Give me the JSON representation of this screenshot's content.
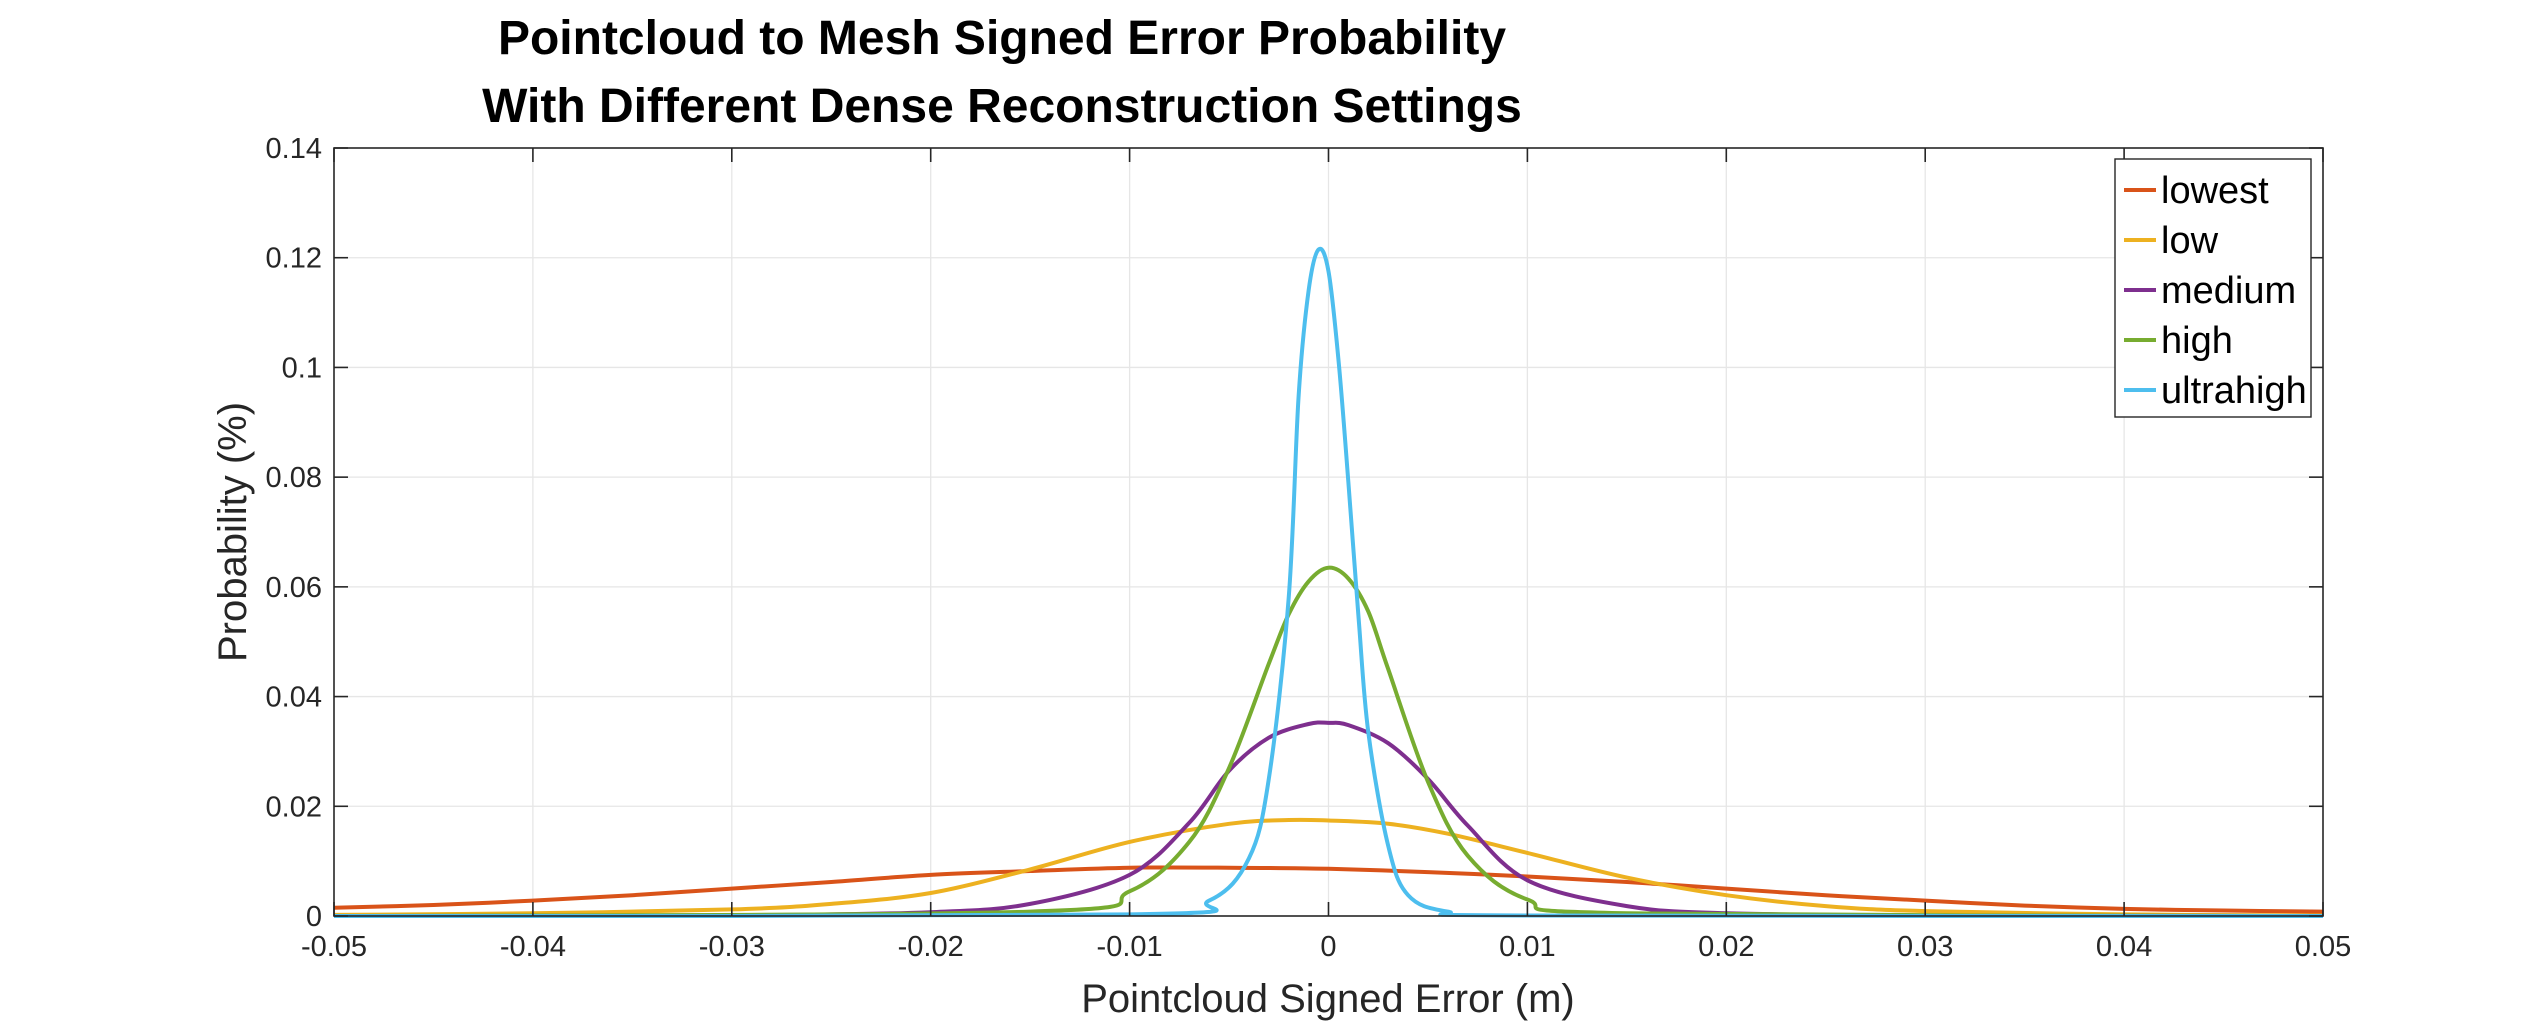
{
  "chart_data": {
    "type": "line",
    "title": [
      "Pointcloud to Mesh Signed Error Probability",
      "With Different Dense Reconstruction Settings"
    ],
    "xlabel": "Pointcloud Signed Error (m)",
    "ylabel": "Probability (%)",
    "xlim": [
      -0.05,
      0.05
    ],
    "ylim": [
      0,
      0.14
    ],
    "xticks": [
      -0.05,
      -0.04,
      -0.03,
      -0.02,
      -0.01,
      0,
      0.01,
      0.02,
      0.03,
      0.04,
      0.05
    ],
    "xtick_labels": [
      "-0.05",
      "-0.04",
      "-0.03",
      "-0.02",
      "-0.01",
      "0",
      "0.01",
      "0.02",
      "0.03",
      "0.04",
      "0.05"
    ],
    "yticks": [
      0,
      0.02,
      0.04,
      0.06,
      0.08,
      0.1,
      0.12,
      0.14
    ],
    "ytick_labels": [
      "0",
      "0.02",
      "0.04",
      "0.06",
      "0.08",
      "0.1",
      "0.12",
      "0.14"
    ],
    "grid": true,
    "legend_position": "top-right",
    "series": [
      {
        "name": "lowest",
        "color": "#D95319",
        "x": [
          -0.05,
          -0.045,
          -0.04,
          -0.035,
          -0.03,
          -0.025,
          -0.02,
          -0.015,
          -0.01,
          -0.005,
          0,
          0.005,
          0.01,
          0.015,
          0.02,
          0.025,
          0.03,
          0.035,
          0.04,
          0.045,
          0.05
        ],
        "y": [
          0.0015,
          0.002,
          0.0028,
          0.0038,
          0.005,
          0.0062,
          0.0075,
          0.0082,
          0.0088,
          0.0088,
          0.0086,
          0.008,
          0.0072,
          0.0062,
          0.005,
          0.0038,
          0.0028,
          0.0019,
          0.0013,
          0.001,
          0.0008
        ]
      },
      {
        "name": "low",
        "color": "#EDB120",
        "x": [
          -0.05,
          -0.04,
          -0.03,
          -0.025,
          -0.02,
          -0.015,
          -0.01,
          -0.005,
          -0.002,
          0,
          0.003,
          0.006,
          0.01,
          0.015,
          0.02,
          0.025,
          0.03,
          0.04,
          0.05
        ],
        "y": [
          0.0002,
          0.0005,
          0.0012,
          0.0022,
          0.0042,
          0.0085,
          0.0135,
          0.0168,
          0.0175,
          0.0174,
          0.0168,
          0.015,
          0.0115,
          0.007,
          0.0038,
          0.0018,
          0.0009,
          0.0003,
          0.0001
        ]
      },
      {
        "name": "medium",
        "color": "#7E2F8E",
        "x": [
          -0.05,
          -0.03,
          -0.02,
          -0.015,
          -0.01,
          -0.007,
          -0.005,
          -0.003,
          -0.001,
          0,
          0.001,
          0.003,
          0.005,
          0.007,
          0.01,
          0.015,
          0.02,
          0.03,
          0.05
        ],
        "y": [
          0,
          0.0001,
          0.0007,
          0.0022,
          0.0075,
          0.017,
          0.0265,
          0.0325,
          0.035,
          0.0352,
          0.0348,
          0.0315,
          0.025,
          0.0165,
          0.0065,
          0.0018,
          0.0005,
          0.0001,
          0
        ]
      },
      {
        "name": "high",
        "color": "#77AC30",
        "x": [
          -0.05,
          -0.015,
          -0.01,
          -0.007,
          -0.005,
          -0.003,
          -0.002,
          -0.001,
          0,
          0.001,
          0.002,
          0.003,
          0.005,
          0.007,
          0.01,
          0.015,
          0.05
        ],
        "y": [
          0,
          0.0008,
          0.0045,
          0.0135,
          0.027,
          0.046,
          0.055,
          0.061,
          0.0635,
          0.0615,
          0.0555,
          0.045,
          0.0245,
          0.011,
          0.003,
          0.0005,
          0
        ]
      },
      {
        "name": "ultrahigh",
        "color": "#4DBEEE",
        "x": [
          -0.05,
          -0.01,
          -0.006,
          -0.004,
          -0.003,
          -0.002,
          -0.0015,
          -0.001,
          -0.0005,
          0,
          0.0005,
          0.001,
          0.0015,
          0.002,
          0.003,
          0.004,
          0.006,
          0.01,
          0.05
        ],
        "y": [
          0,
          0.0003,
          0.0028,
          0.0105,
          0.025,
          0.058,
          0.095,
          0.114,
          0.1215,
          0.1175,
          0.1015,
          0.079,
          0.055,
          0.0335,
          0.0128,
          0.0038,
          0.0008,
          0.0001,
          0
        ]
      }
    ]
  }
}
